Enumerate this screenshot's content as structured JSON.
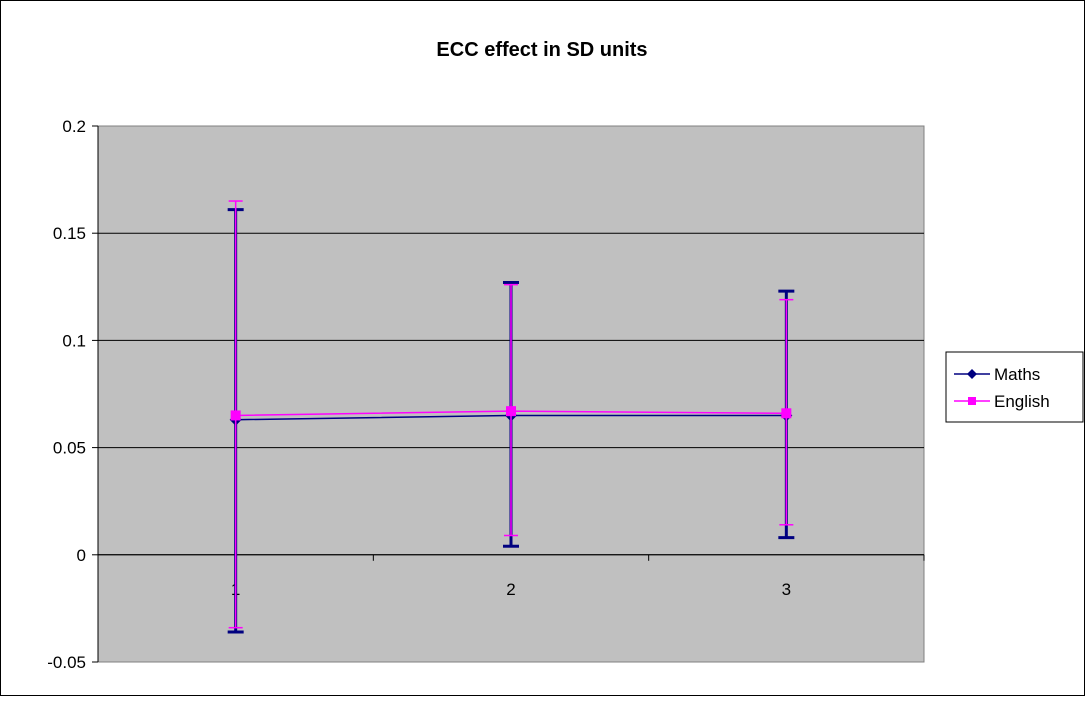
{
  "chart_data": {
    "type": "line",
    "title": "ECC effect in SD units",
    "categories": [
      "1",
      "2",
      "3"
    ],
    "ylim": [
      -0.05,
      0.2
    ],
    "yticks": [
      -0.05,
      0,
      0.05,
      0.1,
      0.15,
      0.2
    ],
    "ytick_labels": [
      "-0.05",
      "0",
      "0.05",
      "0.1",
      "0.15",
      "0.2"
    ],
    "grid": true,
    "legend_position": "right",
    "plot_background": "#c0c0c0",
    "series": [
      {
        "name": "Maths",
        "color": "#000080",
        "marker": "diamond",
        "values": [
          0.063,
          0.065,
          0.065
        ],
        "error_low": [
          -0.036,
          0.004,
          0.008
        ],
        "error_high": [
          0.161,
          0.127,
          0.123
        ]
      },
      {
        "name": "English",
        "color": "#ff00ff",
        "marker": "square",
        "values": [
          0.065,
          0.067,
          0.066
        ],
        "error_low": [
          -0.034,
          0.009,
          0.014
        ],
        "error_high": [
          0.165,
          0.126,
          0.119
        ]
      }
    ]
  }
}
